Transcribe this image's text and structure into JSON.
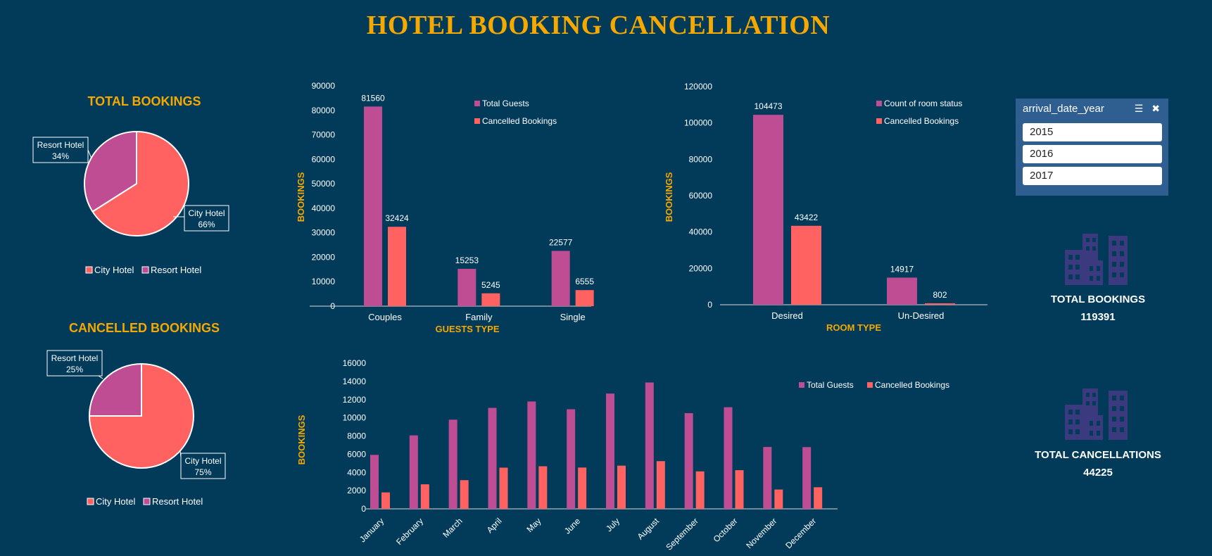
{
  "title": "HOTEL BOOKING CANCELLATION",
  "colors": {
    "background": "#023a5a",
    "accent": "#f5a800",
    "purple": "#be4d94",
    "coral": "#ff6261",
    "building": "#3b3a7e",
    "slicer": "#2f5f91"
  },
  "chart_data": [
    {
      "id": "total-bookings-pie",
      "type": "pie",
      "title": "TOTAL BOOKINGS",
      "categories": [
        "City Hotel",
        "Resort Hotel"
      ],
      "values": [
        66,
        34
      ],
      "data_labels": [
        [
          "City Hotel",
          "66%"
        ],
        [
          "Resort Hotel",
          "34%"
        ]
      ],
      "legend": [
        "City Hotel",
        "Resort Hotel"
      ],
      "legend_position": "bottom"
    },
    {
      "id": "cancelled-bookings-pie",
      "type": "pie",
      "title": "CANCELLED BOOKINGS",
      "categories": [
        "City Hotel",
        "Resort Hotel"
      ],
      "values": [
        75,
        25
      ],
      "data_labels": [
        [
          "City Hotel",
          "75%"
        ],
        [
          "Resort Hotel",
          "25%"
        ]
      ],
      "legend": [
        "City Hotel",
        "Resort Hotel"
      ],
      "legend_position": "bottom"
    },
    {
      "id": "guests-type-bar",
      "type": "bar",
      "categories": [
        "Couples",
        "Family",
        "Single"
      ],
      "series": [
        {
          "name": "Total Guests",
          "values": [
            81560,
            15253,
            22577
          ]
        },
        {
          "name": "Cancelled Bookings",
          "values": [
            32424,
            5245,
            6555
          ]
        }
      ],
      "xlabel": "GUESTS TYPE",
      "ylabel": "BOOKINGS",
      "ylim": [
        0,
        90000
      ],
      "yticks": [
        "0",
        "10000",
        "20000",
        "30000",
        "40000",
        "50000",
        "60000",
        "70000",
        "80000",
        "90000"
      ],
      "legend_position": "top-right"
    },
    {
      "id": "room-type-bar",
      "type": "bar",
      "categories": [
        "Desired",
        "Un-Desired"
      ],
      "series": [
        {
          "name": "Count of room status",
          "values": [
            104473,
            14917
          ]
        },
        {
          "name": "Cancelled Bookings",
          "values": [
            43422,
            802
          ]
        }
      ],
      "xlabel": "ROOM TYPE",
      "ylabel": "BOOKINGS",
      "ylim": [
        0,
        120000
      ],
      "yticks": [
        "0",
        "20000",
        "40000",
        "60000",
        "80000",
        "100000",
        "120000"
      ],
      "legend_position": "top-right"
    },
    {
      "id": "monthly-bar",
      "type": "bar",
      "categories": [
        "January",
        "February",
        "March",
        "April",
        "May",
        "June",
        "July",
        "August",
        "September",
        "October",
        "November",
        "December"
      ],
      "series": [
        {
          "name": "Total Guests",
          "values": [
            5929,
            8068,
            9794,
            11089,
            11791,
            10939,
            12661,
            13877,
            10508,
            11160,
            6794,
            6780
          ]
        },
        {
          "name": "Cancelled Bookings",
          "values": [
            1807,
            2696,
            3149,
            4524,
            4677,
            4535,
            4742,
            5239,
            4116,
            4246,
            2122,
            2371
          ]
        }
      ],
      "xlabel": "",
      "ylabel": "BOOKINGS",
      "ylim": [
        0,
        16000
      ],
      "yticks": [
        "0",
        "2000",
        "4000",
        "6000",
        "8000",
        "10000",
        "12000",
        "14000",
        "16000"
      ],
      "legend_position": "top-right"
    }
  ],
  "slicer": {
    "header": "arrival_date_year",
    "items": [
      "2015",
      "2016",
      "2017"
    ]
  },
  "kpis": {
    "total_bookings": {
      "label": "TOTAL BOOKINGS",
      "value": "119391"
    },
    "total_cancellations": {
      "label": "TOTAL CANCELLATIONS",
      "value": "44225"
    }
  },
  "icons": {
    "multiselect": "multiselect-icon",
    "clear_filter": "clear-filter-icon",
    "building": "building-icon"
  }
}
